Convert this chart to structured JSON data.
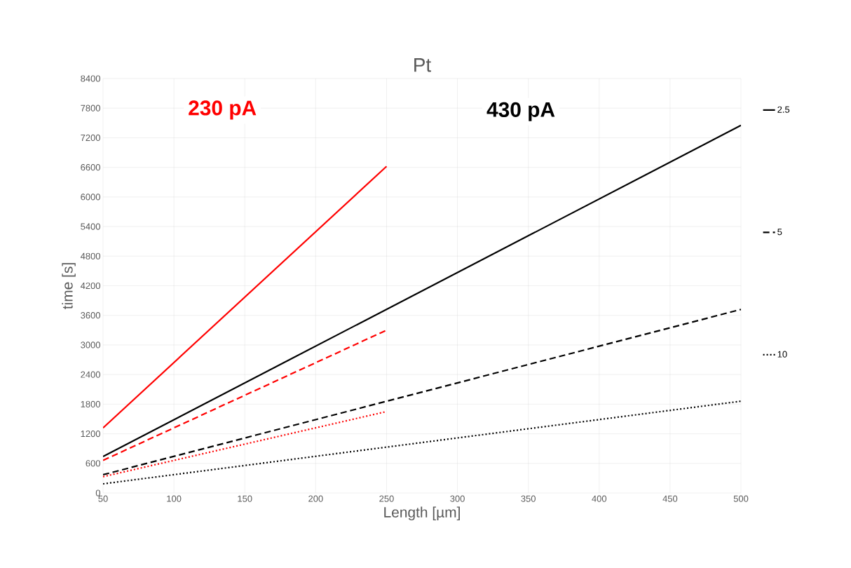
{
  "chart_data": {
    "type": "line",
    "title": "Pt",
    "xlabel": "Length [µm]",
    "ylabel": "time [s]",
    "annotations": [
      "230 pA",
      "430 pA"
    ],
    "series": [
      {
        "color": "#ff0000",
        "line_style": "solid",
        "x": [
          50,
          250
        ],
        "values": [
          1320,
          6620
        ]
      },
      {
        "color": "#ff0000",
        "line_style": "dashed",
        "x": [
          50,
          250
        ],
        "values": [
          660,
          3300
        ]
      },
      {
        "color": "#ff0000",
        "line_style": "dotted",
        "x": [
          50,
          250
        ],
        "values": [
          330,
          1650
        ]
      },
      {
        "name": "2.5",
        "color": "#000000",
        "line_style": "solid",
        "x": [
          50,
          500
        ],
        "values": [
          740,
          7450
        ]
      },
      {
        "name": "5",
        "color": "#000000",
        "line_style": "dashed",
        "x": [
          50,
          500
        ],
        "values": [
          370,
          3720
        ]
      },
      {
        "name": "10",
        "color": "#000000",
        "line_style": "dotted",
        "x": [
          50,
          500
        ],
        "values": [
          185,
          1860
        ]
      }
    ],
    "xlim": [
      50,
      500
    ],
    "xticks": [
      50,
      100,
      150,
      200,
      250,
      300,
      350,
      400,
      450,
      500
    ],
    "ylim": [
      0,
      8400
    ],
    "yticks": [
      0,
      600,
      1200,
      1800,
      2400,
      3000,
      3600,
      4200,
      4800,
      5400,
      6000,
      6600,
      7200,
      7800,
      8400
    ],
    "grid": true,
    "legend": "right",
    "marker": "none"
  }
}
